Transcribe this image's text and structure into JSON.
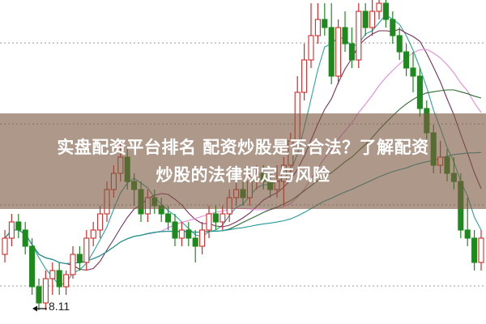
{
  "banner": {
    "line1": "实盘配资平台排名 配资炒股是否合法？了解配资",
    "line2": "炒股的法律规定与风险"
  },
  "chart_data": {
    "type": "candlestick",
    "annotation": {
      "label": "8.11",
      "value": 8.11,
      "candle_index": 5
    },
    "grid": "horizontal-dotted",
    "ylim": [
      7.94,
      11.94
    ],
    "grid_levels": [
      11.41,
      10.41,
      9.41,
      8.41
    ],
    "colors": {
      "up": "#d12a2a",
      "down": "#1e8a1e",
      "ma": [
        "#2aa3a3",
        "#7b2f5a",
        "#e58ae0",
        "#2e6b2e",
        "#1f9a9a"
      ]
    },
    "moving_average_periods": [
      5,
      10,
      20,
      30,
      60
    ],
    "ohlc": [
      [
        8.8,
        9.1,
        8.7,
        9.0
      ],
      [
        9.0,
        9.3,
        8.9,
        9.2
      ],
      [
        9.2,
        9.3,
        9.0,
        9.1
      ],
      [
        9.1,
        9.2,
        8.8,
        8.9
      ],
      [
        8.9,
        9.0,
        8.3,
        8.4
      ],
      [
        8.4,
        8.5,
        8.11,
        8.2
      ],
      [
        8.2,
        8.6,
        8.11,
        8.5
      ],
      [
        8.5,
        8.7,
        8.3,
        8.6
      ],
      [
        8.6,
        8.7,
        8.3,
        8.4
      ],
      [
        8.4,
        8.6,
        8.3,
        8.55
      ],
      [
        8.55,
        8.9,
        8.5,
        8.8
      ],
      [
        8.8,
        8.9,
        8.6,
        8.7
      ],
      [
        8.7,
        9.1,
        8.6,
        9.0
      ],
      [
        9.0,
        9.2,
        8.9,
        9.1
      ],
      [
        9.1,
        9.4,
        9.0,
        9.3
      ],
      [
        9.3,
        9.7,
        9.2,
        9.6
      ],
      [
        9.6,
        9.9,
        9.5,
        9.8
      ],
      [
        9.8,
        10.2,
        9.7,
        10.0
      ],
      [
        10.0,
        10.1,
        9.6,
        9.7
      ],
      [
        9.7,
        9.8,
        9.4,
        9.6
      ],
      [
        9.6,
        9.7,
        9.2,
        9.3
      ],
      [
        9.3,
        9.6,
        9.2,
        9.5
      ],
      [
        9.5,
        9.6,
        9.3,
        9.4
      ],
      [
        9.4,
        9.5,
        9.2,
        9.3
      ],
      [
        9.3,
        9.4,
        9.1,
        9.2
      ],
      [
        9.2,
        9.3,
        8.9,
        9.0
      ],
      [
        9.0,
        9.2,
        8.9,
        9.1
      ],
      [
        9.1,
        9.2,
        8.9,
        9.0
      ],
      [
        9.0,
        9.1,
        8.7,
        8.9
      ],
      [
        8.9,
        9.2,
        8.8,
        9.1
      ],
      [
        9.1,
        9.4,
        9.0,
        9.3
      ],
      [
        9.3,
        9.4,
        9.1,
        9.2
      ],
      [
        9.2,
        9.4,
        9.1,
        9.3
      ],
      [
        9.3,
        9.6,
        9.2,
        9.5
      ],
      [
        9.5,
        9.7,
        9.4,
        9.6
      ],
      [
        9.6,
        9.7,
        9.4,
        9.5
      ],
      [
        9.5,
        9.8,
        9.4,
        9.7
      ],
      [
        9.7,
        9.9,
        9.6,
        9.8
      ],
      [
        9.8,
        9.9,
        9.6,
        9.7
      ],
      [
        9.7,
        9.8,
        9.5,
        9.6
      ],
      [
        9.6,
        9.9,
        9.5,
        9.7
      ],
      [
        9.7,
        10.0,
        9.4,
        9.9
      ],
      [
        9.9,
        10.3,
        9.8,
        10.2
      ],
      [
        10.2,
        11.0,
        10.1,
        10.8
      ],
      [
        10.8,
        11.4,
        10.7,
        11.2
      ],
      [
        11.2,
        11.9,
        11.1,
        11.5
      ],
      [
        11.5,
        11.9,
        11.4,
        11.7
      ],
      [
        11.7,
        11.9,
        11.5,
        11.6
      ],
      [
        11.6,
        11.9,
        10.9,
        11.0
      ],
      [
        11.0,
        11.7,
        10.9,
        11.6
      ],
      [
        11.6,
        11.8,
        11.3,
        11.4
      ],
      [
        11.4,
        11.6,
        11.1,
        11.2
      ],
      [
        11.2,
        11.9,
        11.1,
        11.8
      ],
      [
        11.8,
        11.9,
        11.5,
        11.6
      ],
      [
        11.6,
        11.94,
        11.5,
        11.8
      ],
      [
        11.8,
        11.94,
        11.7,
        11.9
      ],
      [
        11.9,
        11.94,
        11.6,
        11.7
      ],
      [
        11.7,
        11.8,
        11.4,
        11.5
      ],
      [
        11.5,
        11.6,
        11.2,
        11.3
      ],
      [
        11.3,
        11.4,
        11.0,
        11.1
      ],
      [
        11.1,
        11.3,
        10.8,
        11.0
      ],
      [
        11.0,
        11.1,
        10.5,
        10.6
      ],
      [
        10.6,
        10.7,
        10.2,
        10.3
      ],
      [
        10.3,
        10.4,
        9.8,
        9.9
      ],
      [
        9.9,
        10.2,
        9.8,
        10.0
      ],
      [
        10.0,
        10.1,
        9.7,
        9.8
      ],
      [
        9.8,
        10.0,
        9.6,
        9.7
      ],
      [
        9.7,
        9.8,
        9.0,
        9.1
      ],
      [
        9.1,
        9.5,
        8.9,
        9.0
      ],
      [
        9.0,
        9.1,
        8.6,
        8.7
      ],
      [
        8.7,
        9.1,
        8.6,
        9.0
      ]
    ]
  }
}
